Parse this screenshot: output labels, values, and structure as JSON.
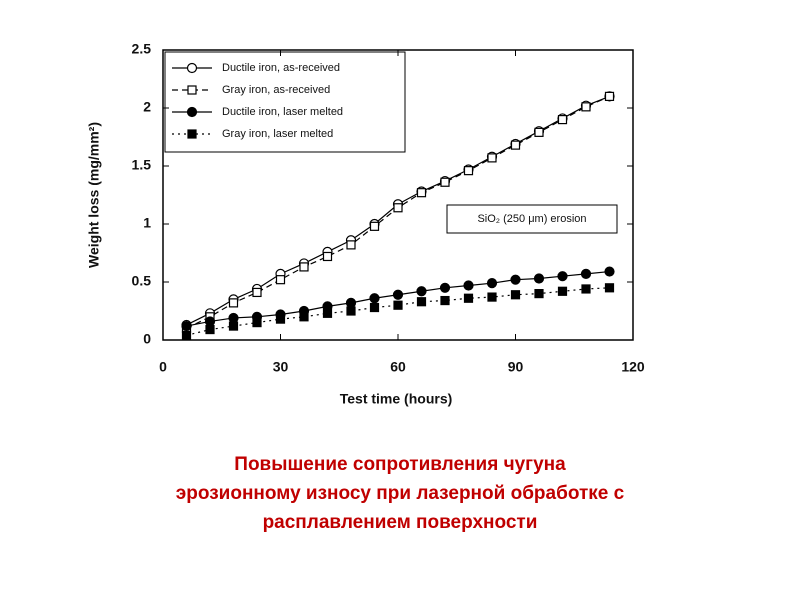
{
  "chart_data": {
    "type": "line",
    "xlabel": "Test time (hours)",
    "ylabel": "Weight loss (mg/mm²)",
    "annotation": "SiO₂ (250 μm) erosion",
    "x": [
      6,
      12,
      18,
      24,
      30,
      36,
      42,
      48,
      54,
      60,
      66,
      72,
      78,
      84,
      90,
      96,
      102,
      108,
      114
    ],
    "series": [
      {
        "name": "Ductile iron, as-received",
        "color": "#000000",
        "marker": "circle",
        "filled": false,
        "dash": "none",
        "values": [
          0.13,
          0.23,
          0.35,
          0.44,
          0.57,
          0.66,
          0.76,
          0.86,
          1.0,
          1.17,
          1.28,
          1.37,
          1.47,
          1.58,
          1.69,
          1.8,
          1.91,
          2.02,
          2.1
        ]
      },
      {
        "name": "Gray iron, as-received",
        "color": "#000000",
        "marker": "square",
        "filled": false,
        "dash": "6,4",
        "values": [
          0.1,
          0.2,
          0.32,
          0.41,
          0.52,
          0.63,
          0.72,
          0.82,
          0.98,
          1.14,
          1.27,
          1.36,
          1.46,
          1.57,
          1.68,
          1.79,
          1.9,
          2.01,
          2.1
        ]
      },
      {
        "name": "Ductile iron, laser melted",
        "color": "#000000",
        "marker": "circle",
        "filled": true,
        "dash": "none",
        "values": [
          0.12,
          0.16,
          0.19,
          0.2,
          0.22,
          0.25,
          0.29,
          0.32,
          0.36,
          0.39,
          0.42,
          0.45,
          0.47,
          0.49,
          0.52,
          0.53,
          0.55,
          0.57,
          0.59
        ]
      },
      {
        "name": "Gray iron, laser melted",
        "color": "#000000",
        "marker": "square",
        "filled": true,
        "dash": "2,4",
        "values": [
          0.04,
          0.09,
          0.12,
          0.15,
          0.18,
          0.2,
          0.23,
          0.25,
          0.28,
          0.3,
          0.33,
          0.34,
          0.36,
          0.37,
          0.39,
          0.4,
          0.42,
          0.44,
          0.45
        ]
      }
    ],
    "xlim": [
      0,
      120
    ],
    "xticks": [
      0,
      30,
      60,
      90,
      120
    ],
    "ylim": [
      0,
      2.5
    ],
    "yticks": [
      0,
      0.5,
      1,
      1.5,
      2,
      2.5
    ],
    "grid": false,
    "legend": "upper-left"
  },
  "caption": [
    "Повышение сопротивления чугуна",
    "эрозионному износу при лазерной обработке с",
    "расплавлением поверхности"
  ]
}
